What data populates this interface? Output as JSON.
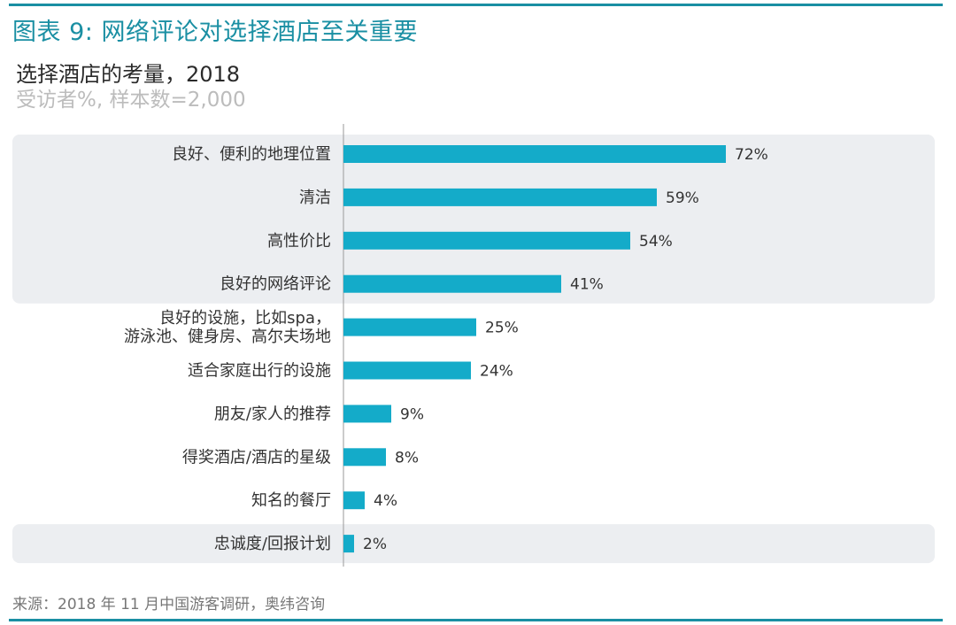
{
  "header": {
    "figure_title": "图表 9: 网络评论对选择酒店至关重要",
    "chart_title": "选择酒店的考量，2018",
    "chart_note": "受访者%, 样本数=2,000"
  },
  "footer": {
    "source": "来源：2018 年 11 月中国游客调研，奥纬咨询"
  },
  "colors": {
    "accent": "#1a8fa3",
    "bar": "#14abc9",
    "highlight_band": "#eceef1"
  },
  "chart_data": {
    "type": "bar",
    "orientation": "horizontal",
    "categories": [
      [
        "良好、便利的地理位置"
      ],
      [
        "清洁"
      ],
      [
        "高性价比"
      ],
      [
        "良好的网络评论"
      ],
      [
        "良好的设施，比如spa，",
        "游泳池、健身房、高尔夫场地"
      ],
      [
        "适合家庭出行的设施"
      ],
      [
        "朋友/家人的推荐"
      ],
      [
        "得奖酒店/酒店的星级"
      ],
      [
        "知名的餐厅"
      ],
      [
        "忠诚度/回报计划"
      ]
    ],
    "values": [
      72,
      59,
      54,
      41,
      25,
      24,
      9,
      8,
      4,
      2
    ],
    "data_labels": [
      "72%",
      "59%",
      "54%",
      "41%",
      "25%",
      "24%",
      "9%",
      "8%",
      "4%",
      "2%"
    ],
    "highlighted_groups": [
      [
        0,
        3
      ],
      [
        9,
        9
      ]
    ],
    "xlim": [
      0,
      100
    ],
    "grid": false
  }
}
